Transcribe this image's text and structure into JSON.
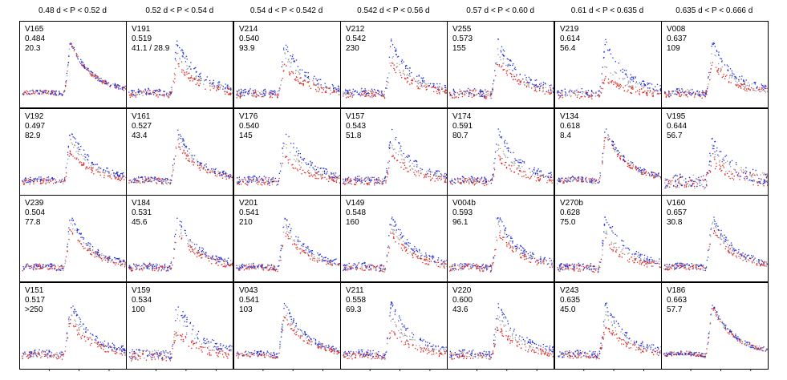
{
  "chart_data": {
    "type": "scatter",
    "series_colors": {
      "blue": "#1f2fe0",
      "gray": "#9a9a9a",
      "red": "#e0241f"
    },
    "columns": [
      "0.48 d < P < 0.52 d",
      "0.52 d < P < 0.54 d",
      "0.54 d < P < 0.542 d",
      "0.542 d < P < 0.56 d",
      "0.57 d < P < 0.60 d",
      "0.61 d < P < 0.635 d",
      "0.635 d < P < 0.666 d"
    ],
    "panels": [
      [
        {
          "star": "V165",
          "period": "0.484",
          "value": "20.3",
          "amp": [
            1.0,
            0.98,
            0.97
          ],
          "noise": 0.04
        },
        {
          "star": "V192",
          "period": "0.497",
          "value": "82.9",
          "amp": [
            1.0,
            0.82,
            0.6
          ],
          "noise": 0.05
        },
        {
          "star": "V239",
          "period": "0.504",
          "value": "77.8",
          "amp": [
            1.0,
            0.9,
            0.78
          ],
          "noise": 0.05
        },
        {
          "star": "V151",
          "period": "0.517",
          "value": ">250",
          "amp": [
            1.0,
            0.85,
            0.65
          ],
          "noise": 0.06
        }
      ],
      [
        {
          "star": "V191",
          "period": "0.519",
          "value": "41.1 / 28.9",
          "amp": [
            1.0,
            0.8,
            0.6
          ],
          "noise": 0.06
        },
        {
          "star": "V161",
          "period": "0.527",
          "value": "43.4",
          "amp": [
            1.0,
            0.88,
            0.75
          ],
          "noise": 0.05
        },
        {
          "star": "V184",
          "period": "0.531",
          "value": "45.6",
          "amp": [
            1.0,
            0.85,
            0.7
          ],
          "noise": 0.06
        },
        {
          "star": "V159",
          "period": "0.534",
          "value": "100",
          "amp": [
            1.0,
            0.75,
            0.45
          ],
          "noise": 0.08
        }
      ],
      [
        {
          "star": "V214",
          "period": "0.540",
          "value": "93.9",
          "amp": [
            1.0,
            0.75,
            0.55
          ],
          "noise": 0.06
        },
        {
          "star": "V176",
          "period": "0.540",
          "value": "145",
          "amp": [
            1.0,
            0.72,
            0.5
          ],
          "noise": 0.06
        },
        {
          "star": "V201",
          "period": "0.541",
          "value": "210",
          "amp": [
            1.0,
            0.85,
            0.7
          ],
          "noise": 0.05
        },
        {
          "star": "V043",
          "period": "0.541",
          "value": "103",
          "amp": [
            1.0,
            0.88,
            0.75
          ],
          "noise": 0.05
        }
      ],
      [
        {
          "star": "V212",
          "period": "0.542",
          "value": "230",
          "amp": [
            1.0,
            0.75,
            0.6
          ],
          "noise": 0.06
        },
        {
          "star": "V157",
          "period": "0.543",
          "value": "51.8",
          "amp": [
            1.0,
            0.75,
            0.55
          ],
          "noise": 0.06
        },
        {
          "star": "V149",
          "period": "0.548",
          "value": "160",
          "amp": [
            1.0,
            0.82,
            0.68
          ],
          "noise": 0.06
        },
        {
          "star": "V211",
          "period": "0.558",
          "value": "69.3",
          "amp": [
            1.0,
            0.72,
            0.5
          ],
          "noise": 0.06
        }
      ],
      [
        {
          "star": "V255",
          "period": "0.573",
          "value": "155",
          "amp": [
            1.0,
            0.8,
            0.62
          ],
          "noise": 0.07
        },
        {
          "star": "V174",
          "period": "0.591",
          "value": "80.7",
          "amp": [
            1.0,
            0.7,
            0.5
          ],
          "noise": 0.06
        },
        {
          "star": "V004b",
          "period": "0.593",
          "value": "96.1",
          "amp": [
            1.0,
            0.85,
            0.72
          ],
          "noise": 0.06
        },
        {
          "star": "V220",
          "period": "0.600",
          "value": "43.6",
          "amp": [
            1.0,
            0.75,
            0.55
          ],
          "noise": 0.06
        }
      ],
      [
        {
          "star": "V219",
          "period": "0.614",
          "value": "56.4",
          "amp": [
            1.0,
            0.6,
            0.35
          ],
          "noise": 0.06
        },
        {
          "star": "V134",
          "period": "0.618",
          "value": "8.4",
          "amp": [
            1.0,
            0.95,
            0.9
          ],
          "noise": 0.05
        },
        {
          "star": "V270b",
          "period": "0.628",
          "value": "75.0",
          "amp": [
            1.0,
            0.75,
            0.55
          ],
          "noise": 0.06
        },
        {
          "star": "V243",
          "period": "0.635",
          "value": "45.0",
          "amp": [
            1.0,
            0.8,
            0.6
          ],
          "noise": 0.06
        }
      ],
      [
        {
          "star": "V008",
          "period": "0.637",
          "value": "109",
          "amp": [
            1.0,
            0.8,
            0.62
          ],
          "noise": 0.06
        },
        {
          "star": "V195",
          "period": "0.644",
          "value": "56.7",
          "amp": [
            0.75,
            0.6,
            0.45
          ],
          "noise": 0.12
        },
        {
          "star": "V160",
          "period": "0.657",
          "value": "30.8",
          "amp": [
            1.0,
            0.88,
            0.75
          ],
          "noise": 0.05
        },
        {
          "star": "V186",
          "period": "0.663",
          "value": "57.7",
          "amp": [
            1.0,
            0.97,
            0.95
          ],
          "noise": 0.04
        }
      ]
    ]
  }
}
